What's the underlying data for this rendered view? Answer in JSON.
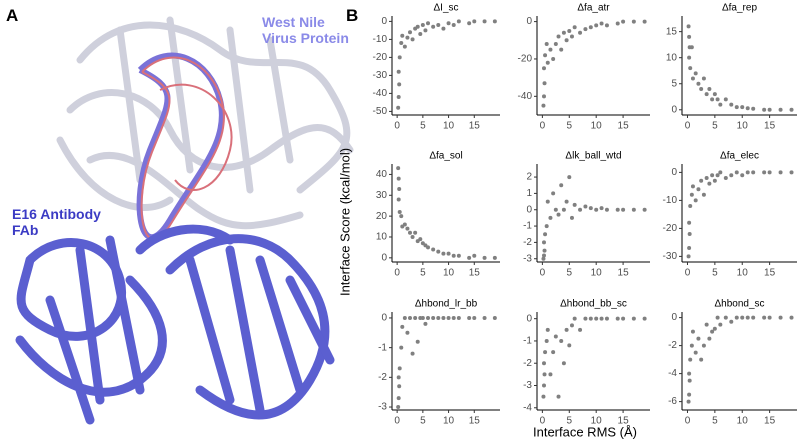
{
  "panel_a": {
    "label": "A",
    "virus_label": "West Nile Virus Protein",
    "antibody_label": "E16 Antibody FAb"
  },
  "panel_b": {
    "label": "B",
    "y_label": "Interface Score (kcal/mol)",
    "x_label": "Interface RMS (Å)"
  },
  "chart_data": [
    {
      "type": "scatter",
      "title": "ΔI_sc",
      "color": "#808080",
      "xlim": [
        -1,
        20
      ],
      "xticks": [
        0,
        5,
        10,
        15
      ],
      "ylim": [
        -52,
        3
      ],
      "yticks": [
        0,
        -10,
        -20,
        -30,
        -40,
        -50
      ],
      "x": [
        0.2,
        0.3,
        0.4,
        0.3,
        0.5,
        0.8,
        1,
        1.5,
        2,
        2.5,
        3,
        3.5,
        4,
        4.5,
        5,
        5.5,
        6,
        7,
        8,
        9,
        10,
        11,
        12,
        14,
        15,
        17,
        19
      ],
      "values": [
        -48,
        -42,
        -35,
        -28,
        -20,
        -12,
        -8,
        -14,
        -9,
        -6,
        -10,
        -4,
        -3,
        -7,
        -2,
        -5,
        -1,
        -3,
        -2,
        -4,
        -1,
        -2,
        0,
        -1,
        0,
        0,
        0
      ]
    },
    {
      "type": "scatter",
      "title": "Δfa_atr",
      "color": "#808080",
      "xlim": [
        -1,
        20
      ],
      "xticks": [
        0,
        5,
        10,
        15
      ],
      "ylim": [
        -50,
        3
      ],
      "yticks": [
        0,
        -20,
        -40
      ],
      "x": [
        0.2,
        0.3,
        0.4,
        0.3,
        0.5,
        0.8,
        1,
        1.5,
        2,
        2.5,
        3,
        3.5,
        4,
        4.5,
        5,
        5.5,
        6,
        7,
        8,
        9,
        10,
        11,
        12,
        14,
        15,
        17,
        19
      ],
      "values": [
        -45,
        -40,
        -33,
        -25,
        -18,
        -12,
        -22,
        -15,
        -20,
        -12,
        -8,
        -15,
        -6,
        -10,
        -5,
        -8,
        -3,
        -6,
        -4,
        -3,
        -2,
        -1,
        -2,
        -1,
        0,
        0,
        0
      ]
    },
    {
      "type": "scatter",
      "title": "Δfa_rep",
      "color": "#808080",
      "xlim": [
        -1,
        20
      ],
      "xticks": [
        0,
        5,
        10,
        15
      ],
      "ylim": [
        -1,
        18
      ],
      "yticks": [
        0,
        5,
        10,
        15
      ],
      "x": [
        0.2,
        0.3,
        0.4,
        0.3,
        0.5,
        0.8,
        1,
        1.5,
        2,
        2.5,
        3,
        3.5,
        4,
        4.5,
        5,
        5.5,
        6,
        7,
        8,
        9,
        10,
        11,
        12,
        14,
        15,
        17,
        19
      ],
      "values": [
        16,
        14,
        12,
        10,
        8,
        12,
        6,
        7,
        5,
        4,
        6,
        3,
        4,
        2,
        3,
        2,
        1,
        2,
        1,
        0.5,
        0.5,
        0.3,
        0.2,
        0,
        0,
        0,
        0
      ]
    },
    {
      "type": "scatter",
      "title": "Δfa_sol",
      "color": "#808080",
      "xlim": [
        -1,
        20
      ],
      "xticks": [
        0,
        5,
        10,
        15
      ],
      "ylim": [
        -2,
        45
      ],
      "yticks": [
        0,
        10,
        20,
        30,
        40
      ],
      "x": [
        0.2,
        0.3,
        0.4,
        0.3,
        0.5,
        0.8,
        1,
        1.5,
        2,
        2.5,
        3,
        3.5,
        4,
        4.5,
        5,
        5.5,
        6,
        7,
        8,
        9,
        10,
        11,
        12,
        14,
        15,
        17,
        19
      ],
      "values": [
        43,
        38,
        33,
        28,
        22,
        20,
        15,
        16,
        14,
        12,
        10,
        12,
        8,
        9,
        7,
        6,
        5,
        4,
        3,
        2,
        2,
        1,
        1,
        0,
        1,
        0,
        0
      ]
    },
    {
      "type": "scatter",
      "title": "Δlk_ball_wtd",
      "color": "#808080",
      "xlim": [
        -1,
        20
      ],
      "xticks": [
        0,
        5,
        10,
        15
      ],
      "ylim": [
        -3.2,
        2.8
      ],
      "yticks": [
        -3,
        -2,
        -1,
        0,
        1,
        2
      ],
      "x": [
        0.2,
        0.3,
        0.4,
        0.3,
        0.5,
        0.8,
        1,
        1.5,
        2,
        2.5,
        3,
        3.5,
        4,
        4.5,
        5,
        5.5,
        6,
        7,
        8,
        9,
        10,
        11,
        12,
        14,
        15,
        17,
        19
      ],
      "values": [
        -3,
        -2.8,
        -2.5,
        -2,
        -1.5,
        -1,
        0.5,
        -0.5,
        1,
        0,
        -0.3,
        1.5,
        0,
        0.5,
        2,
        -0.5,
        0.3,
        0,
        0.2,
        0.1,
        0,
        0.1,
        0,
        0,
        0,
        0,
        0
      ]
    },
    {
      "type": "scatter",
      "title": "Δfa_elec",
      "color": "#808080",
      "xlim": [
        -1,
        20
      ],
      "xticks": [
        0,
        5,
        10,
        15
      ],
      "ylim": [
        -32,
        3
      ],
      "yticks": [
        0,
        -10,
        -20,
        -30
      ],
      "x": [
        0.2,
        0.3,
        0.4,
        0.3,
        0.5,
        0.8,
        1,
        1.5,
        2,
        2.5,
        3,
        3.5,
        4,
        4.5,
        5,
        5.5,
        6,
        7,
        8,
        9,
        10,
        11,
        12,
        14,
        15,
        17,
        19
      ],
      "values": [
        -30,
        -27,
        -22,
        -18,
        -12,
        -8,
        -5,
        -10,
        -6,
        -3,
        -8,
        -2,
        -4,
        -1,
        -3,
        -1,
        0,
        -2,
        -1,
        0,
        -1,
        0,
        0,
        0,
        0,
        0,
        0
      ]
    },
    {
      "type": "scatter",
      "title": "Δhbond_lr_bb",
      "color": "#808080",
      "xlim": [
        -1,
        20
      ],
      "xticks": [
        0,
        5,
        10,
        15
      ],
      "ylim": [
        -3.1,
        0.2
      ],
      "yticks": [
        0,
        -1,
        -2,
        -3
      ],
      "x": [
        0.2,
        0.3,
        0.4,
        0.3,
        0.5,
        0.8,
        1,
        1.5,
        2,
        2.5,
        3,
        3.5,
        4,
        4.5,
        5,
        5.5,
        6,
        7,
        8,
        9,
        10,
        11,
        12,
        14,
        15,
        17,
        19
      ],
      "values": [
        -3,
        -2.7,
        -2.3,
        -2,
        -1.7,
        -1,
        -0.3,
        0,
        -0.5,
        0,
        -1.2,
        0,
        -0.8,
        0,
        0,
        -0.2,
        0,
        0,
        0,
        0,
        0,
        0,
        0,
        0,
        0,
        0,
        0
      ]
    },
    {
      "type": "scatter",
      "title": "Δhbond_bb_sc",
      "color": "#808080",
      "xlim": [
        -1,
        20
      ],
      "xticks": [
        0,
        5,
        10,
        15
      ],
      "ylim": [
        -4.1,
        0.3
      ],
      "yticks": [
        0,
        -1,
        -2,
        -3,
        -4
      ],
      "x": [
        0.2,
        0.3,
        0.4,
        0.3,
        0.5,
        0.8,
        1,
        1.5,
        2,
        2.5,
        3,
        3.5,
        4,
        4.5,
        5,
        5.5,
        6,
        7,
        8,
        9,
        10,
        11,
        12,
        14,
        15,
        17,
        19
      ],
      "values": [
        -3.5,
        -3,
        -2.5,
        -2,
        -1.5,
        -1,
        -0.5,
        -2.5,
        -1.5,
        -0.8,
        -3.5,
        -1,
        -2,
        -0.5,
        -1.2,
        -0.3,
        0,
        -0.5,
        0,
        0,
        0,
        0,
        0,
        0,
        0,
        0,
        0
      ]
    },
    {
      "type": "scatter",
      "title": "Δhbond_sc",
      "color": "#808080",
      "xlim": [
        -1,
        20
      ],
      "xticks": [
        0,
        5,
        10,
        15
      ],
      "ylim": [
        -6.6,
        0.4
      ],
      "yticks": [
        0,
        -2,
        -4,
        -6
      ],
      "x": [
        0.2,
        0.3,
        0.4,
        0.3,
        0.5,
        0.8,
        1,
        1.5,
        2,
        2.5,
        3,
        3.5,
        4,
        4.5,
        5,
        5.5,
        6,
        7,
        8,
        9,
        10,
        11,
        12,
        14,
        15,
        17,
        19
      ],
      "values": [
        -6,
        -5.5,
        -4.5,
        -4,
        -3,
        -2,
        -1,
        -2.5,
        -1.5,
        -3,
        -2,
        -0.5,
        -1.5,
        -1,
        -0.8,
        0,
        -0.5,
        0,
        -0.3,
        0,
        0,
        0,
        0,
        0,
        0,
        0,
        0
      ]
    }
  ]
}
